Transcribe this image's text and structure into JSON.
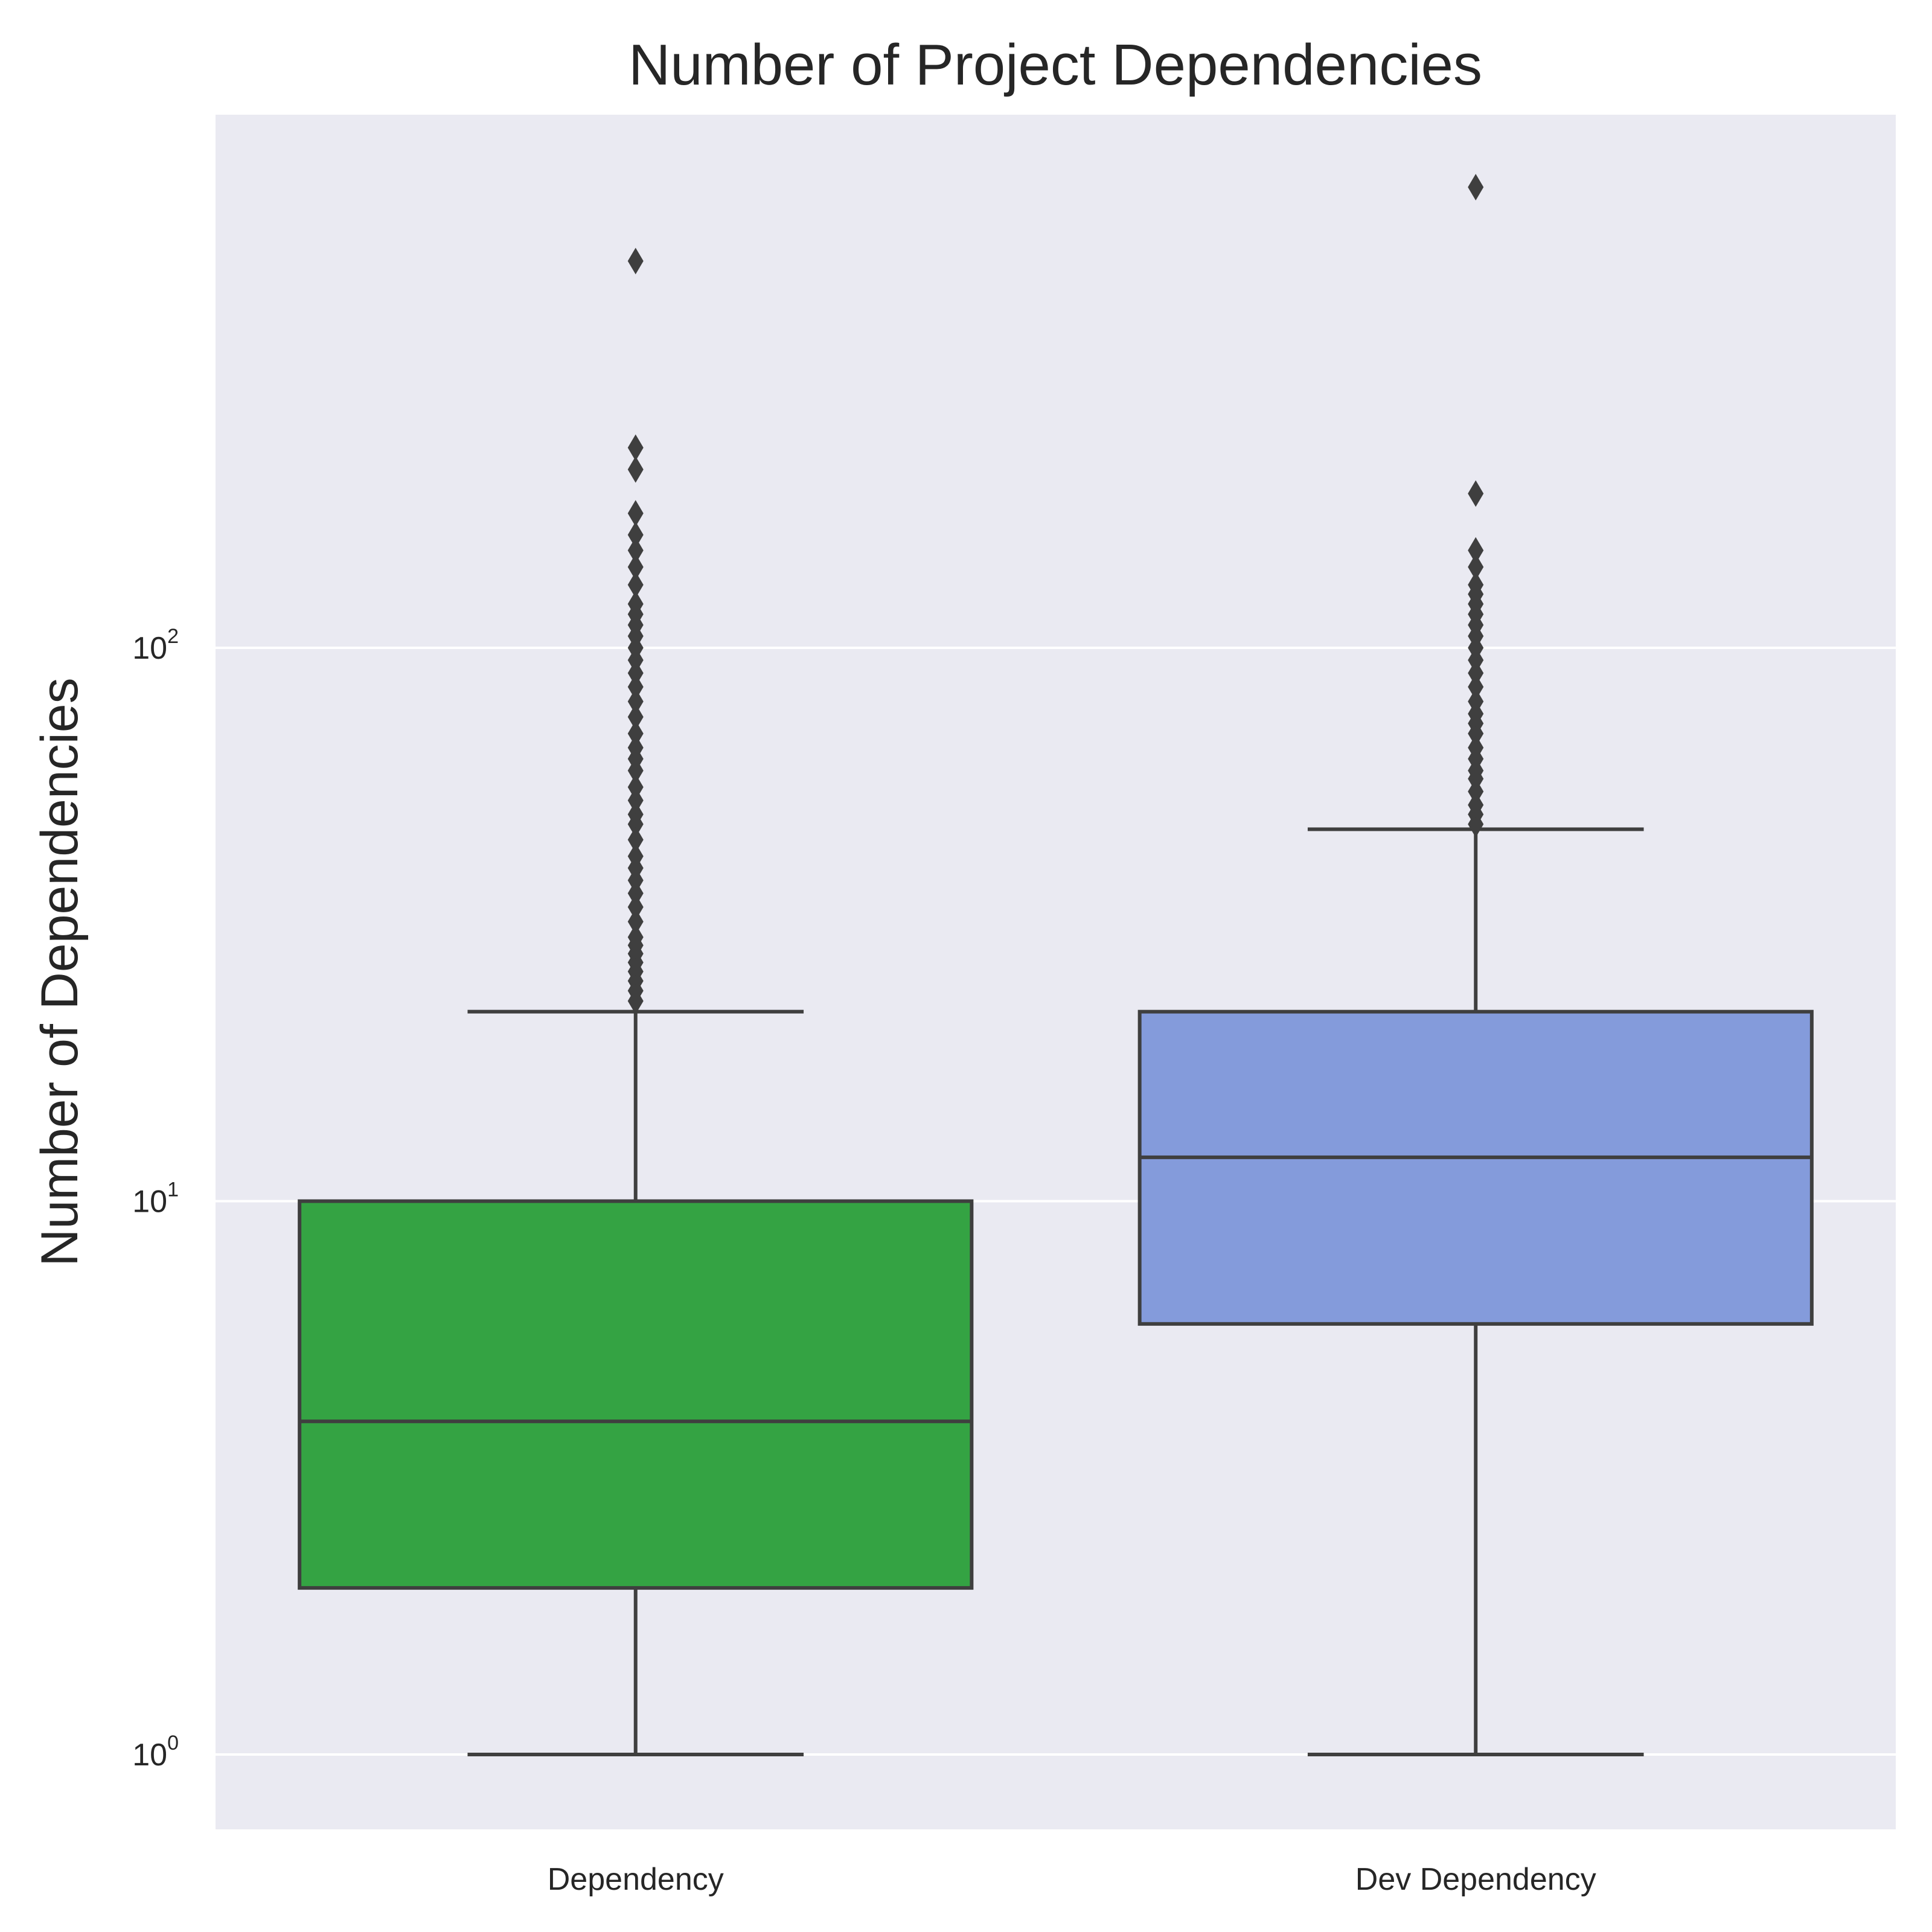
{
  "chart_data": {
    "type": "box",
    "title": "Number of Project Dependencies",
    "xlabel": "",
    "ylabel": "Number of Dependencies",
    "y_scale": "log",
    "ylim": [
      0.7,
      800
    ],
    "grid": true,
    "y_ticks": [
      {
        "value": 1,
        "base": "10",
        "exp": "0"
      },
      {
        "value": 10,
        "base": "10",
        "exp": "1"
      },
      {
        "value": 100,
        "base": "10",
        "exp": "2"
      }
    ],
    "categories": [
      "Dependency",
      "Dev Dependency"
    ],
    "series": [
      {
        "category": "Dependency",
        "color": "#34a343",
        "whisker_low": 1,
        "q1": 2,
        "median": 4,
        "q3": 10,
        "whisker_high": 22,
        "outliers": [
          23,
          24,
          25,
          26,
          27,
          28,
          29,
          30,
          32,
          34,
          36,
          38,
          40,
          42,
          45,
          48,
          50,
          53,
          56,
          60,
          63,
          66,
          70,
          75,
          80,
          85,
          90,
          95,
          100,
          105,
          110,
          115,
          120,
          130,
          140,
          150,
          160,
          175,
          210,
          230,
          500
        ]
      },
      {
        "category": "Dev Dependency",
        "color": "#849bdb",
        "whisker_low": 1,
        "q1": 6,
        "median": 12,
        "q3": 22,
        "whisker_high": 47,
        "outliers": [
          48,
          50,
          52,
          55,
          58,
          60,
          63,
          66,
          70,
          73,
          76,
          80,
          85,
          90,
          95,
          100,
          105,
          110,
          115,
          120,
          125,
          130,
          140,
          150,
          190,
          680
        ]
      }
    ]
  }
}
